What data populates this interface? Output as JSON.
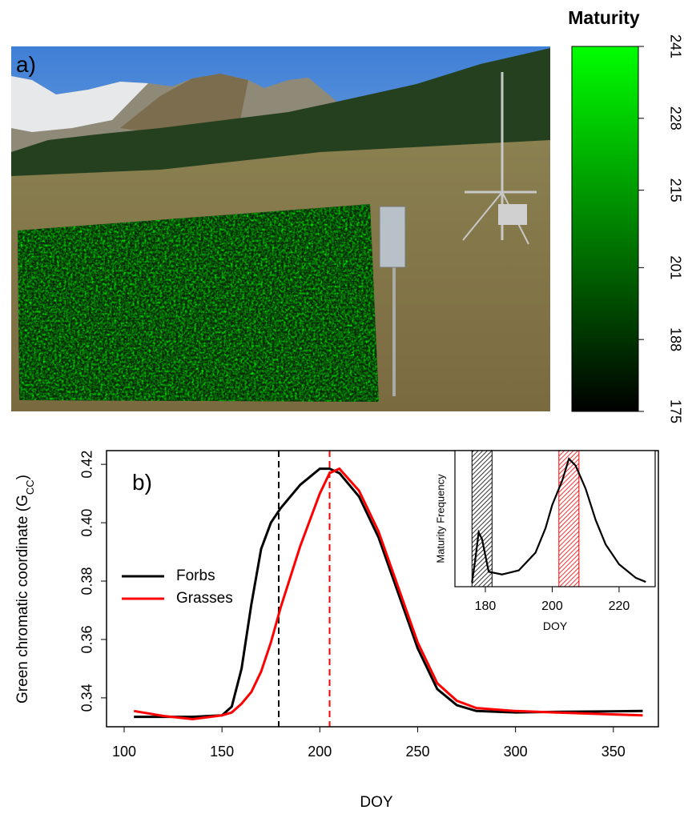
{
  "chart_data": [
    {
      "type": "image",
      "label": "a)",
      "colorbar": {
        "title": "Maturity",
        "lim": [
          175,
          241
        ],
        "ticks": [
          175,
          188,
          201,
          215,
          228,
          241
        ],
        "colors": [
          "#000000",
          "#00ff00"
        ]
      }
    },
    {
      "type": "line",
      "label": "b)",
      "xlabel": "DOY",
      "ylabel": [
        "Green chromatic coordinate (G",
        "CC",
        ")"
      ],
      "xlim": [
        91,
        373
      ],
      "ylim": [
        0.3301,
        0.4247
      ],
      "xticks": [
        100,
        150,
        200,
        250,
        300,
        350
      ],
      "yticks": [
        0.34,
        0.36,
        0.38,
        {
          "value": 0.4,
          "label": "0.40"
        },
        0.42
      ],
      "x": [
        105,
        120,
        135,
        150,
        155,
        160,
        165,
        170,
        175,
        180,
        190,
        200,
        205,
        210,
        220,
        230,
        240,
        250,
        260,
        270,
        280,
        300,
        320,
        365
      ],
      "series": [
        {
          "name": "Forbs",
          "color": "#000000",
          "values": [
            0.3335,
            0.3335,
            0.3335,
            0.334,
            0.337,
            0.35,
            0.372,
            0.391,
            0.4,
            0.405,
            0.413,
            0.4185,
            0.4185,
            0.417,
            0.409,
            0.395,
            0.376,
            0.357,
            0.343,
            0.3375,
            0.3355,
            0.335,
            0.3352,
            0.3355
          ]
        },
        {
          "name": "Grasses",
          "color": "#ff0000",
          "values": [
            0.3355,
            0.3338,
            0.3327,
            0.334,
            0.335,
            0.338,
            0.342,
            0.349,
            0.359,
            0.371,
            0.392,
            0.41,
            0.417,
            0.4185,
            0.411,
            0.397,
            0.378,
            0.359,
            0.345,
            0.339,
            0.3365,
            0.3355,
            0.335,
            0.334
          ]
        }
      ],
      "vlines": [
        {
          "x": 179,
          "color": "#000000"
        },
        {
          "x": 205,
          "color": "#ff0000"
        }
      ],
      "legend": "left"
    },
    {
      "type": "density",
      "xlabel": "DOY",
      "ylabel": "Maturity Frequency",
      "xlim": [
        170.9,
        230.8
      ],
      "ylim": [
        0,
        1
      ],
      "xticks": [
        180,
        200,
        220
      ],
      "x": [
        176,
        177,
        178,
        179,
        181,
        185,
        190,
        195,
        198,
        200,
        203,
        205,
        207,
        210,
        213,
        216,
        220,
        225,
        228
      ],
      "values": [
        0.03,
        0.2,
        0.4,
        0.35,
        0.11,
        0.09,
        0.12,
        0.25,
        0.43,
        0.6,
        0.78,
        0.94,
        0.89,
        0.72,
        0.49,
        0.31,
        0.165,
        0.065,
        0.035
      ],
      "color": "#000000",
      "bands": [
        {
          "range": [
            176,
            182
          ],
          "color": "#000000"
        },
        {
          "range": [
            202,
            208
          ],
          "color": "#ff0000"
        }
      ]
    }
  ]
}
